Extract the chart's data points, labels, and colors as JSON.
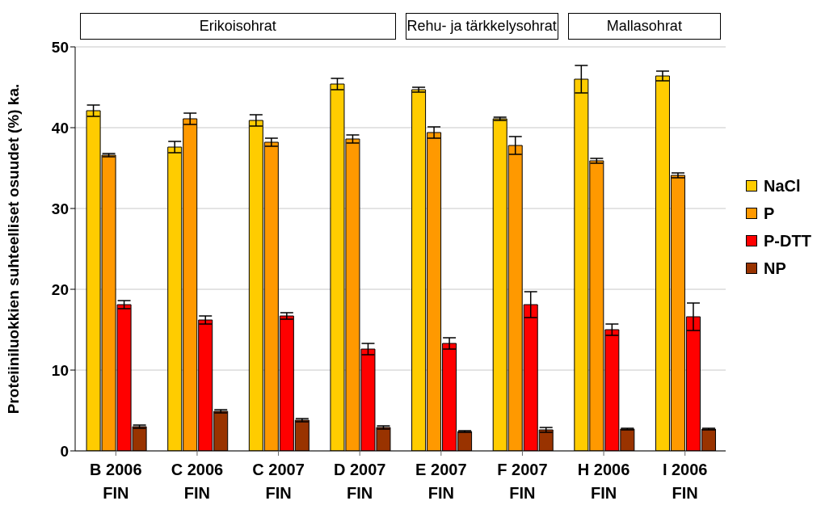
{
  "chart_data": {
    "type": "bar",
    "ylabel": "Proteiiniluokkien suhteelliset osuudet (%) ka.",
    "categories": [
      "B 2006\nFIN",
      "C 2006\nFIN",
      "C 2007\nFIN",
      "D 2007\nFIN",
      "E 2007\nFIN",
      "F 2007\nFIN",
      "H 2006\nFIN",
      "I 2006\nFIN"
    ],
    "series": [
      {
        "name": "NaCl",
        "color": "#ffcc00",
        "values": [
          42.1,
          37.6,
          40.9,
          45.4,
          44.7,
          41.1,
          46.0,
          46.4
        ],
        "errors": [
          0.7,
          0.7,
          0.7,
          0.7,
          0.3,
          0.2,
          1.7,
          0.6
        ]
      },
      {
        "name": "P",
        "color": "#ff9900",
        "values": [
          36.6,
          41.1,
          38.2,
          38.6,
          39.4,
          37.8,
          35.9,
          34.1
        ],
        "errors": [
          0.2,
          0.7,
          0.5,
          0.5,
          0.7,
          1.1,
          0.3,
          0.3
        ]
      },
      {
        "name": "P-DTT",
        "color": "#ff0000",
        "values": [
          18.1,
          16.2,
          16.7,
          12.6,
          13.3,
          18.1,
          15.0,
          16.6
        ],
        "errors": [
          0.5,
          0.5,
          0.4,
          0.7,
          0.7,
          1.6,
          0.7,
          1.7
        ]
      },
      {
        "name": "NP",
        "color": "#993300",
        "values": [
          3.0,
          4.9,
          3.8,
          2.9,
          2.4,
          2.6,
          2.7,
          2.7
        ],
        "errors": [
          0.2,
          0.2,
          0.2,
          0.2,
          0.1,
          0.3,
          0.1,
          0.1
        ]
      }
    ],
    "ylim": [
      0,
      50
    ],
    "yticks": [
      0,
      10,
      20,
      30,
      40,
      50
    ],
    "grid": "y",
    "legend": "right",
    "annotations": [
      "Erikoisohrat",
      "Rehu- ja tärkkelysohrat",
      "Mallasohrat"
    ]
  }
}
